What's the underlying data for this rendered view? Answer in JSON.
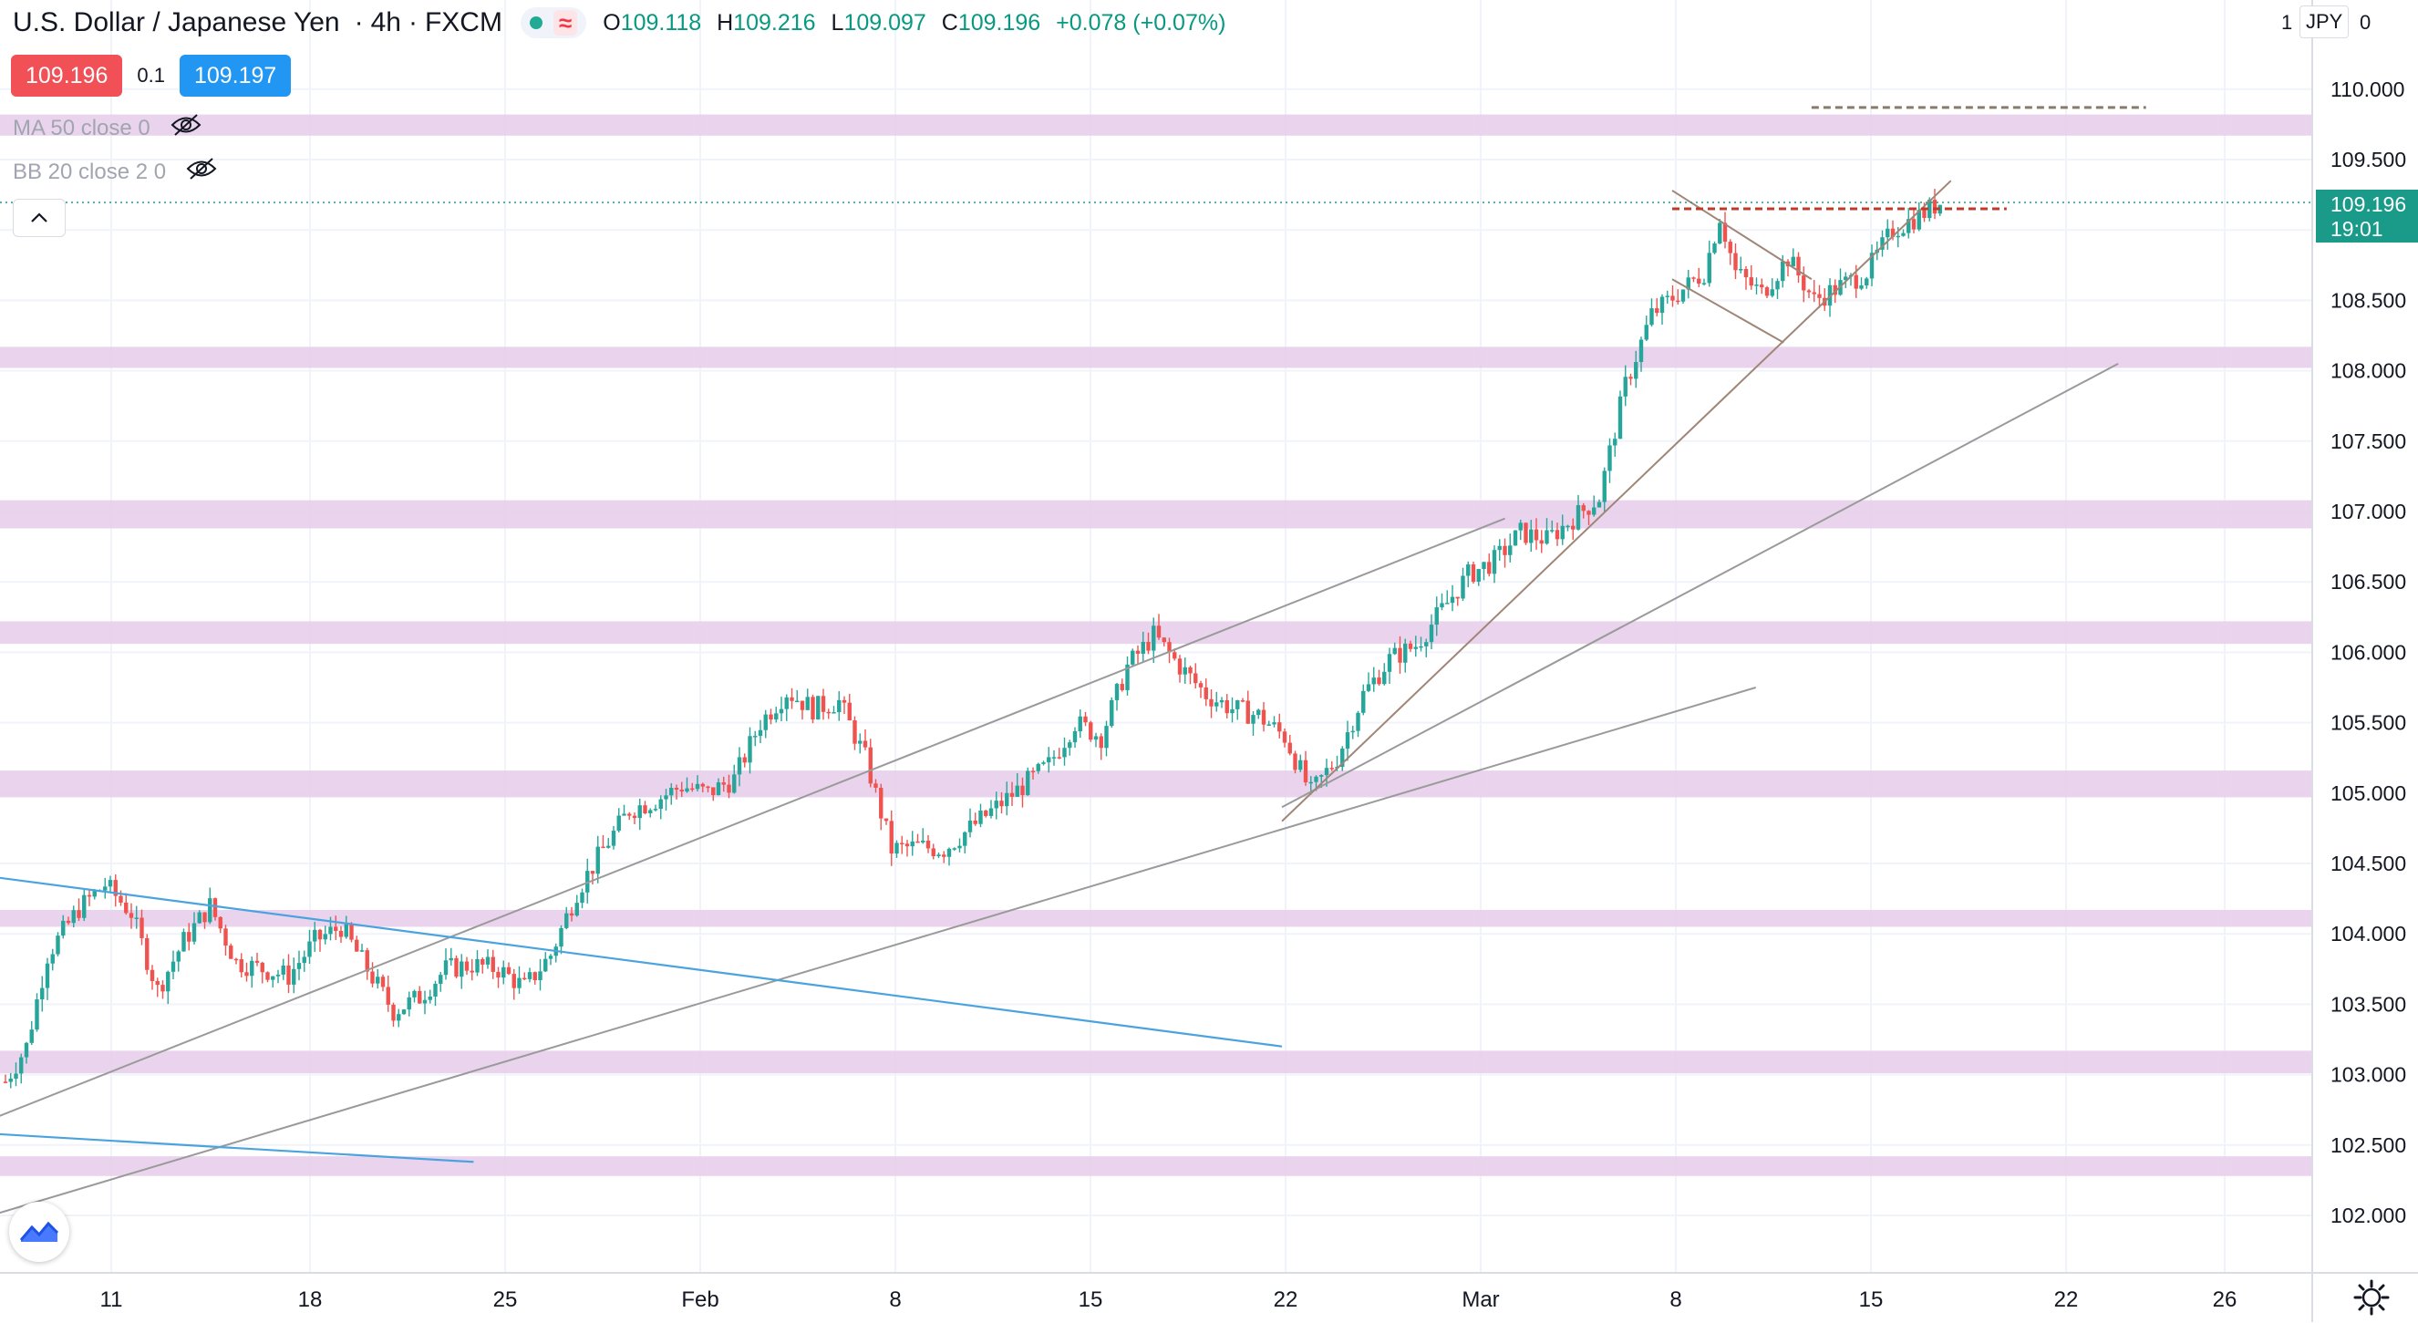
{
  "header": {
    "symbol_title": "U.S. Dollar / Japanese Yen",
    "interval": "4h",
    "exchange": "FXCM",
    "separator": "·",
    "ohlc": {
      "o_label": "O",
      "o": "109.118",
      "h_label": "H",
      "h": "109.216",
      "l_label": "L",
      "l": "109.097",
      "c_label": "C",
      "c": "109.196",
      "change": "+0.078 (+0.07%)"
    }
  },
  "quote": {
    "sell": "109.196",
    "spread": "0.1",
    "buy": "109.197"
  },
  "indicators": [
    {
      "label": "MA 50 close 0"
    },
    {
      "label": "BB 20 close 2 0"
    }
  ],
  "price_axis": {
    "currency": "JPY",
    "currency_prefix": "1",
    "currency_suffix": "0",
    "current_price": "109.196",
    "countdown": "19:01"
  },
  "colors": {
    "up": "#26a69a",
    "down": "#ef5350",
    "zone": "#e6cdea",
    "channel": "#9a9a9a",
    "downtrend": "#4aa3df",
    "trendline": "#a08676",
    "resistance": "#c0392b",
    "target": "#8a7a6a",
    "price_line": "#1a9b8a"
  },
  "chart_data": {
    "type": "candlestick",
    "symbol": "USDJPY",
    "timeframe": "4h",
    "ylim": [
      101.7,
      110.6
    ],
    "y_ticks": [
      "102.000",
      "102.500",
      "103.000",
      "103.500",
      "104.000",
      "104.500",
      "105.000",
      "105.500",
      "106.000",
      "106.500",
      "107.000",
      "107.500",
      "108.000",
      "108.500",
      "109.000",
      "109.500",
      "110.000"
    ],
    "x_ticks": [
      "11",
      "18",
      "25",
      "Feb",
      "8",
      "15",
      "22",
      "Mar",
      "8",
      "15",
      "22",
      "26"
    ],
    "zones": [
      {
        "from": 109.67,
        "to": 109.82
      },
      {
        "from": 108.02,
        "to": 108.17
      },
      {
        "from": 106.88,
        "to": 107.08
      },
      {
        "from": 106.06,
        "to": 106.22
      },
      {
        "from": 104.97,
        "to": 105.16
      },
      {
        "from": 104.05,
        "to": 104.17
      },
      {
        "from": 103.01,
        "to": 103.17
      },
      {
        "from": 102.28,
        "to": 102.42
      }
    ],
    "path_points": [
      [
        0,
        102.95
      ],
      [
        4,
        103.2
      ],
      [
        8,
        103.85
      ],
      [
        14,
        104.18
      ],
      [
        19,
        104.35
      ],
      [
        24,
        104.15
      ],
      [
        29,
        103.6
      ],
      [
        34,
        103.95
      ],
      [
        39,
        104.2
      ],
      [
        44,
        103.8
      ],
      [
        49,
        103.75
      ],
      [
        54,
        103.7
      ],
      [
        59,
        103.95
      ],
      [
        64,
        104.05
      ],
      [
        69,
        103.75
      ],
      [
        74,
        103.45
      ],
      [
        79,
        103.55
      ],
      [
        84,
        103.75
      ],
      [
        89,
        103.78
      ],
      [
        94,
        103.75
      ],
      [
        99,
        103.62
      ],
      [
        104,
        103.85
      ],
      [
        109,
        104.3
      ],
      [
        114,
        104.6
      ],
      [
        119,
        104.88
      ],
      [
        124,
        104.95
      ],
      [
        129,
        105.05
      ],
      [
        134,
        105.0
      ],
      [
        139,
        105.1
      ],
      [
        144,
        105.5
      ],
      [
        149,
        105.72
      ],
      [
        154,
        105.6
      ],
      [
        159,
        105.65
      ],
      [
        164,
        105.25
      ],
      [
        169,
        104.6
      ],
      [
        174,
        104.62
      ],
      [
        179,
        104.6
      ],
      [
        184,
        104.75
      ],
      [
        189,
        104.9
      ],
      [
        194,
        105.05
      ],
      [
        199,
        105.2
      ],
      [
        204,
        105.5
      ],
      [
        209,
        105.4
      ],
      [
        214,
        105.9
      ],
      [
        219,
        106.12
      ],
      [
        224,
        105.9
      ],
      [
        229,
        105.7
      ],
      [
        234,
        105.6
      ],
      [
        239,
        105.55
      ],
      [
        244,
        105.4
      ],
      [
        249,
        105.0
      ],
      [
        254,
        105.25
      ],
      [
        259,
        105.7
      ],
      [
        264,
        105.95
      ],
      [
        269,
        106.05
      ],
      [
        274,
        106.3
      ],
      [
        279,
        106.55
      ],
      [
        284,
        106.65
      ],
      [
        289,
        106.85
      ],
      [
        294,
        106.8
      ],
      [
        299,
        106.95
      ],
      [
        304,
        107.1
      ],
      [
        309,
        107.9
      ],
      [
        314,
        108.4
      ],
      [
        319,
        108.55
      ],
      [
        324,
        108.7
      ],
      [
        327,
        109.1
      ],
      [
        330,
        108.7
      ],
      [
        335,
        108.55
      ],
      [
        340,
        108.8
      ],
      [
        345,
        108.5
      ],
      [
        350,
        108.6
      ],
      [
        355,
        108.7
      ],
      [
        360,
        109.0
      ],
      [
        365,
        109.1
      ],
      [
        369,
        109.196
      ]
    ],
    "drawings": {
      "channel_upper": {
        "from": [
          "Jan 5",
          102.55
        ],
        "to": [
          "Mar 2",
          106.95
        ]
      },
      "channel_lower": {
        "from": [
          "Jan 5",
          101.9
        ],
        "to": [
          "Mar 11",
          105.75
        ]
      },
      "parallel_line": {
        "from": [
          "Feb 22",
          104.9
        ],
        "to": [
          "Mar 24",
          108.05
        ]
      },
      "downtrend_upper": {
        "from": [
          "Jan 5",
          104.45
        ],
        "to": [
          "Feb 22",
          103.2
        ]
      },
      "downtrend_lower": {
        "from": [
          "Jan 5",
          102.6
        ],
        "to": [
          "Jan 24",
          102.38
        ]
      },
      "rising_trendline": {
        "from": [
          "Feb 22",
          104.8
        ],
        "to": [
          "Mar 18",
          109.35
        ]
      },
      "wedge_upper": {
        "from": [
          "Mar 8",
          109.28
        ],
        "to": [
          "Mar 13",
          108.65
        ]
      },
      "wedge_lower": {
        "from": [
          "Mar 8",
          108.65
        ],
        "to": [
          "Mar 12",
          108.2
        ]
      },
      "resistance": {
        "price": 109.15,
        "from": "Mar 8",
        "to": "Mar 20"
      },
      "target": {
        "price": 109.87,
        "from": "Mar 13",
        "to": "Mar 25"
      }
    }
  }
}
